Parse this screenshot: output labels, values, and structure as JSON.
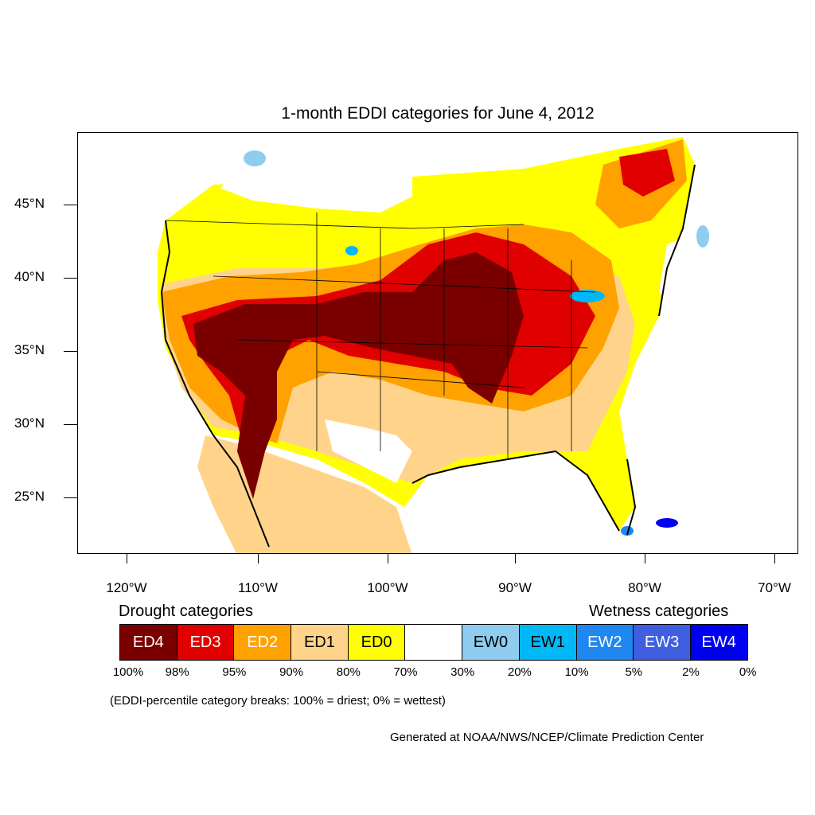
{
  "title": "1-month EDDI categories for June 4, 2012",
  "lat_labels": [
    "45°N",
    "40°N",
    "35°N",
    "30°N",
    "25°N"
  ],
  "lon_labels": [
    "120°W",
    "110°W",
    "100°W",
    "90°W",
    "80°W",
    "70°W"
  ],
  "legend": {
    "drought_title": "Drought categories",
    "wetness_title": "Wetness categories",
    "categories": [
      {
        "label": "ED4",
        "color": "#7a0000",
        "text_color": "#ffffff"
      },
      {
        "label": "ED3",
        "color": "#e00000",
        "text_color": "#ffffff"
      },
      {
        "label": "ED2",
        "color": "#ffa200",
        "text_color": "#ffffff"
      },
      {
        "label": "ED1",
        "color": "#ffd48a",
        "text_color": "#000000"
      },
      {
        "label": "ED0",
        "color": "#ffff00",
        "text_color": "#000000"
      },
      {
        "label": "",
        "color": "#ffffff",
        "text_color": "#000000"
      },
      {
        "label": "EW0",
        "color": "#8ecdf0",
        "text_color": "#000000"
      },
      {
        "label": "EW1",
        "color": "#00b8f5",
        "text_color": "#000000"
      },
      {
        "label": "EW2",
        "color": "#1e88f0",
        "text_color": "#ffffff"
      },
      {
        "label": "EW3",
        "color": "#3f5fe0",
        "text_color": "#ffffff"
      },
      {
        "label": "EW4",
        "color": "#0000f0",
        "text_color": "#ffffff"
      }
    ],
    "breaks": [
      "100%",
      "98%",
      "95%",
      "90%",
      "80%",
      "70%",
      "30%",
      "20%",
      "10%",
      "5%",
      "2%",
      "0%"
    ]
  },
  "note": "(EDDI-percentile category breaks: 100% = driest; 0% = wettest)",
  "credit": "Generated at NOAA/NWS/NCEP/Climate Prediction Center"
}
